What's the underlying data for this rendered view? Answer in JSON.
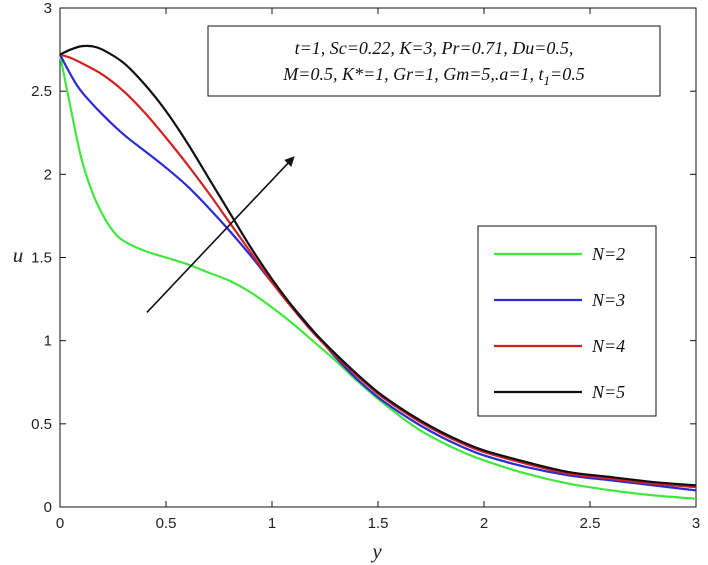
{
  "chart_data": {
    "type": "line",
    "xlabel": "y",
    "ylabel": "u",
    "xlim": [
      0,
      3
    ],
    "ylim": [
      0,
      3
    ],
    "xticks": [
      "0",
      "0.5",
      "1",
      "1.5",
      "2",
      "2.5",
      "3"
    ],
    "yticks": [
      "0",
      "0.5",
      "1",
      "1.5",
      "2",
      "2.5",
      "3"
    ],
    "grid": false,
    "legend_position": "center-right",
    "parameters": {
      "line1": "t=1, Sc=0.22, K=3, Pr=0.71, Du=0.5,",
      "line2_main": "M=0.5, K*=1, Gr=1, Gm=5,.a=1, t",
      "line2_sub": "1",
      "line2_end": "=0.5"
    },
    "arrow": {
      "from": [
        0.41,
        1.17
      ],
      "to": [
        1.1,
        2.1
      ]
    },
    "series": [
      {
        "name": "N=2",
        "color": "#3ee83e",
        "points": [
          [
            0,
            2.72
          ],
          [
            0.05,
            2.4
          ],
          [
            0.1,
            2.1
          ],
          [
            0.15,
            1.9
          ],
          [
            0.2,
            1.76
          ],
          [
            0.25,
            1.66
          ],
          [
            0.3,
            1.6
          ],
          [
            0.4,
            1.54
          ],
          [
            0.5,
            1.5
          ],
          [
            0.6,
            1.46
          ],
          [
            0.7,
            1.41
          ],
          [
            0.8,
            1.36
          ],
          [
            0.9,
            1.29
          ],
          [
            1.0,
            1.2
          ],
          [
            1.1,
            1.1
          ],
          [
            1.2,
            0.99
          ],
          [
            1.3,
            0.88
          ],
          [
            1.4,
            0.76
          ],
          [
            1.5,
            0.65
          ],
          [
            1.6,
            0.55
          ],
          [
            1.7,
            0.46
          ],
          [
            1.8,
            0.39
          ],
          [
            1.9,
            0.33
          ],
          [
            2.0,
            0.28
          ],
          [
            2.2,
            0.2
          ],
          [
            2.4,
            0.14
          ],
          [
            2.6,
            0.1
          ],
          [
            2.8,
            0.07
          ],
          [
            3.0,
            0.05
          ]
        ]
      },
      {
        "name": "N=3",
        "color": "#2b2bd6",
        "points": [
          [
            0,
            2.72
          ],
          [
            0.05,
            2.6
          ],
          [
            0.1,
            2.5
          ],
          [
            0.2,
            2.36
          ],
          [
            0.3,
            2.24
          ],
          [
            0.4,
            2.14
          ],
          [
            0.5,
            2.04
          ],
          [
            0.6,
            1.93
          ],
          [
            0.7,
            1.8
          ],
          [
            0.8,
            1.66
          ],
          [
            0.9,
            1.51
          ],
          [
            1.0,
            1.35
          ],
          [
            1.1,
            1.2
          ],
          [
            1.2,
            1.05
          ],
          [
            1.3,
            0.9
          ],
          [
            1.4,
            0.77
          ],
          [
            1.5,
            0.66
          ],
          [
            1.6,
            0.57
          ],
          [
            1.7,
            0.49
          ],
          [
            1.8,
            0.42
          ],
          [
            1.9,
            0.36
          ],
          [
            2.0,
            0.31
          ],
          [
            2.2,
            0.24
          ],
          [
            2.4,
            0.19
          ],
          [
            2.6,
            0.16
          ],
          [
            2.8,
            0.13
          ],
          [
            3.0,
            0.1
          ]
        ]
      },
      {
        "name": "N=4",
        "color": "#d42020",
        "points": [
          [
            0,
            2.72
          ],
          [
            0.05,
            2.7
          ],
          [
            0.1,
            2.67
          ],
          [
            0.2,
            2.6
          ],
          [
            0.3,
            2.5
          ],
          [
            0.4,
            2.37
          ],
          [
            0.5,
            2.22
          ],
          [
            0.6,
            2.06
          ],
          [
            0.7,
            1.89
          ],
          [
            0.8,
            1.71
          ],
          [
            0.9,
            1.53
          ],
          [
            1.0,
            1.35
          ],
          [
            1.1,
            1.19
          ],
          [
            1.2,
            1.04
          ],
          [
            1.3,
            0.91
          ],
          [
            1.4,
            0.79
          ],
          [
            1.5,
            0.68
          ],
          [
            1.6,
            0.59
          ],
          [
            1.7,
            0.51
          ],
          [
            1.8,
            0.44
          ],
          [
            1.9,
            0.38
          ],
          [
            2.0,
            0.33
          ],
          [
            2.2,
            0.26
          ],
          [
            2.4,
            0.2
          ],
          [
            2.6,
            0.17
          ],
          [
            2.8,
            0.14
          ],
          [
            3.0,
            0.12
          ]
        ]
      },
      {
        "name": "N=5",
        "color": "#111111",
        "points": [
          [
            0,
            2.72
          ],
          [
            0.05,
            2.75
          ],
          [
            0.1,
            2.77
          ],
          [
            0.15,
            2.77
          ],
          [
            0.2,
            2.75
          ],
          [
            0.3,
            2.67
          ],
          [
            0.4,
            2.54
          ],
          [
            0.5,
            2.38
          ],
          [
            0.6,
            2.19
          ],
          [
            0.7,
            1.98
          ],
          [
            0.8,
            1.77
          ],
          [
            0.9,
            1.56
          ],
          [
            1.0,
            1.37
          ],
          [
            1.1,
            1.2
          ],
          [
            1.2,
            1.05
          ],
          [
            1.3,
            0.92
          ],
          [
            1.4,
            0.8
          ],
          [
            1.5,
            0.69
          ],
          [
            1.6,
            0.6
          ],
          [
            1.7,
            0.52
          ],
          [
            1.8,
            0.45
          ],
          [
            1.9,
            0.39
          ],
          [
            2.0,
            0.34
          ],
          [
            2.2,
            0.27
          ],
          [
            2.4,
            0.21
          ],
          [
            2.6,
            0.18
          ],
          [
            2.8,
            0.15
          ],
          [
            3.0,
            0.13
          ]
        ]
      }
    ]
  }
}
